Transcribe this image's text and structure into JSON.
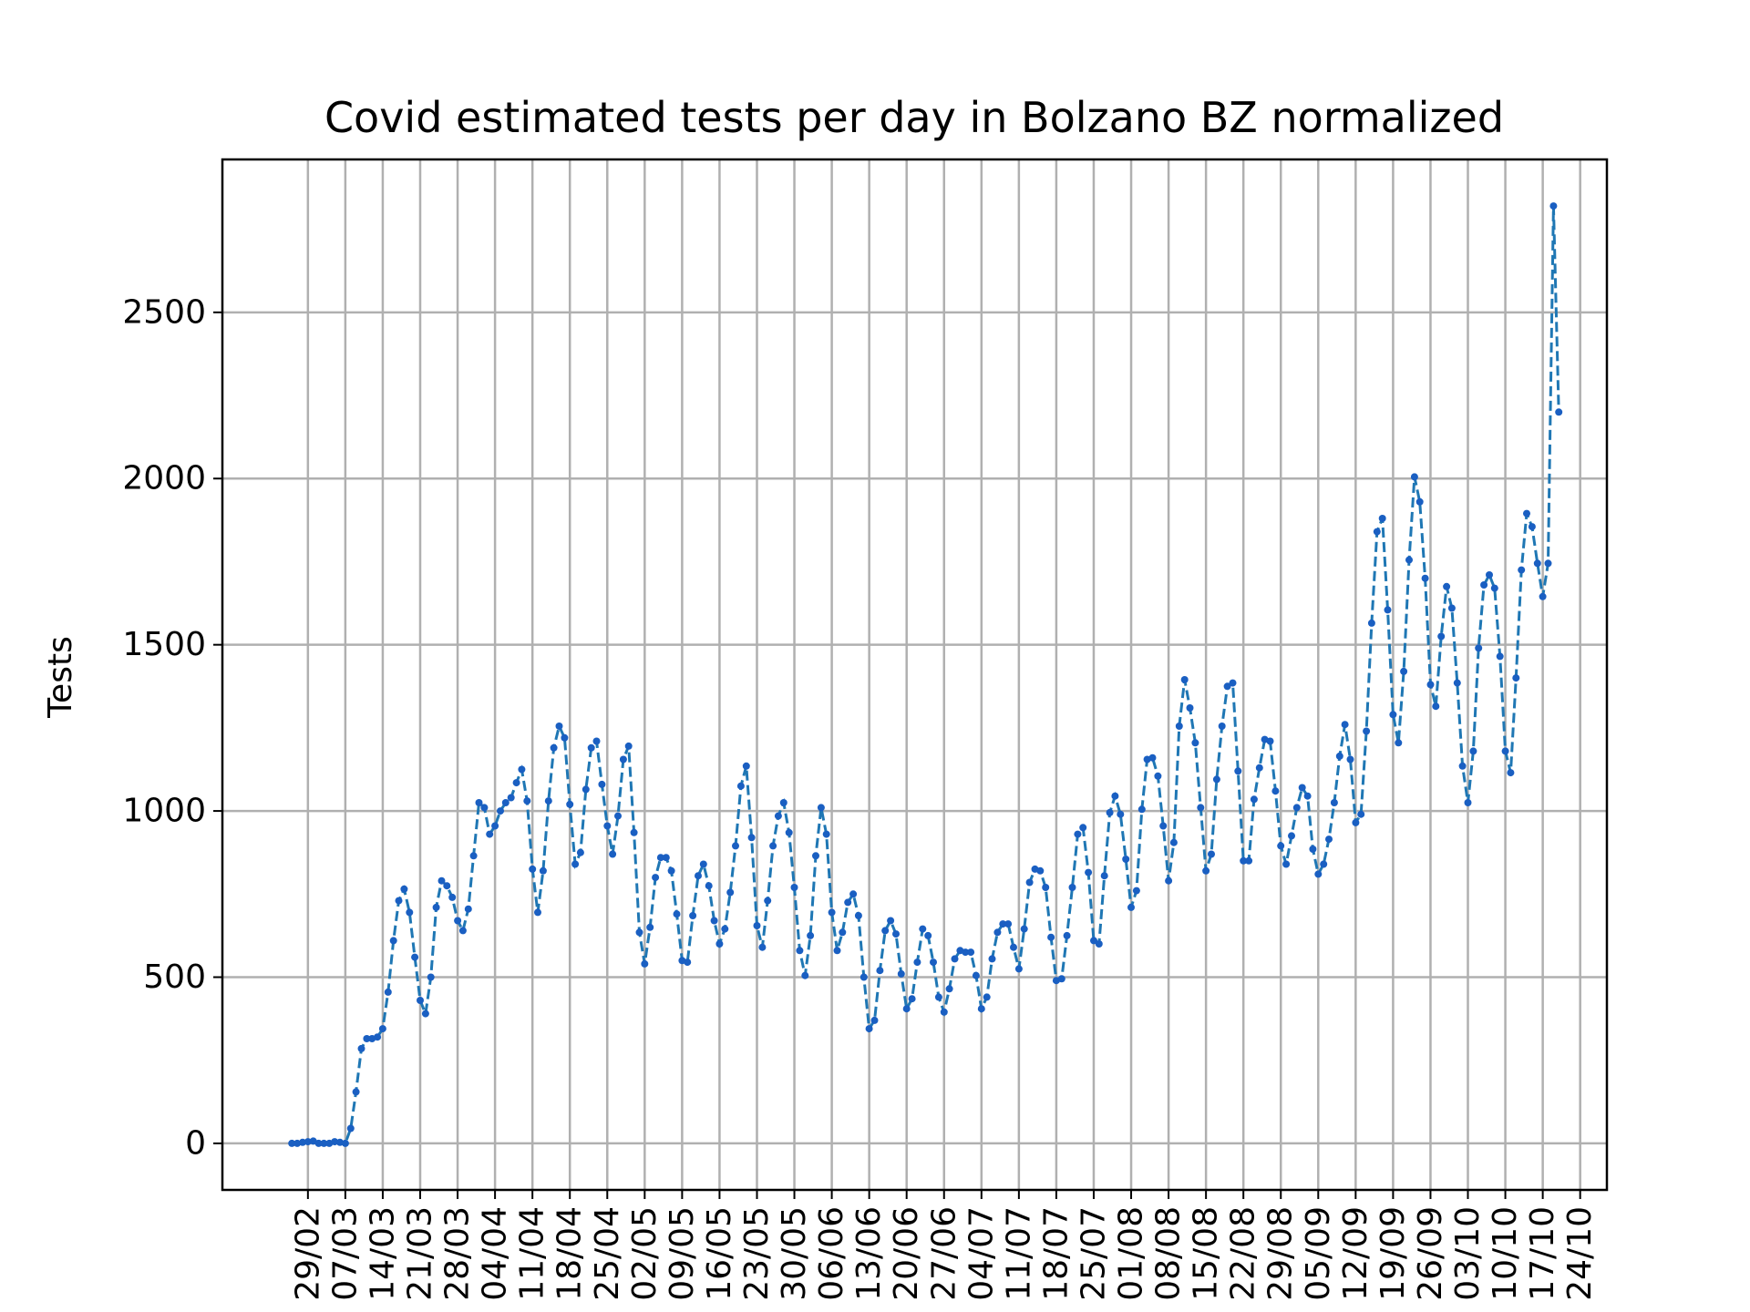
{
  "chart_data": {
    "type": "line",
    "title": "Covid estimated tests per day in Bolzano BZ normalized",
    "xlabel": "",
    "ylabel": "Tests",
    "x_ticks": [
      "29/02",
      "07/03",
      "14/03",
      "21/03",
      "28/03",
      "04/04",
      "11/04",
      "18/04",
      "25/04",
      "02/05",
      "09/05",
      "16/05",
      "23/05",
      "30/05",
      "06/06",
      "13/06",
      "20/06",
      "27/06",
      "04/07",
      "11/07",
      "18/07",
      "25/07",
      "01/08",
      "08/08",
      "15/08",
      "22/08",
      "29/08",
      "05/09",
      "12/09",
      "19/09",
      "26/09",
      "03/10",
      "10/10",
      "17/10",
      "24/10"
    ],
    "y_ticks": [
      0,
      500,
      1000,
      1500,
      2000,
      2500
    ],
    "xlim": [
      "2020-02-13",
      "2020-10-29"
    ],
    "ylim": [
      -140,
      2960
    ],
    "grid": true,
    "series": [
      {
        "color": "#1f77b4",
        "marker_color": "#1a5fc2",
        "linestyle": "dashed",
        "x_start": "2020-02-26",
        "values": [
          0,
          0,
          3,
          5,
          7,
          0,
          0,
          0,
          5,
          3,
          0,
          45,
          155,
          285,
          315,
          315,
          320,
          345,
          455,
          610,
          730,
          765,
          695,
          560,
          430,
          390,
          500,
          710,
          790,
          775,
          740,
          670,
          640,
          705,
          865,
          1025,
          1010,
          930,
          955,
          1000,
          1025,
          1040,
          1085,
          1125,
          1030,
          825,
          695,
          820,
          1030,
          1190,
          1255,
          1220,
          1020,
          840,
          875,
          1065,
          1190,
          1210,
          1080,
          955,
          870,
          985,
          1155,
          1195,
          935,
          635,
          540,
          650,
          800,
          860,
          860,
          820,
          690,
          550,
          545,
          685,
          805,
          840,
          775,
          670,
          600,
          645,
          755,
          895,
          1075,
          1135,
          920,
          655,
          590,
          730,
          895,
          985,
          1025,
          935,
          770,
          580,
          505,
          625,
          865,
          1010,
          930,
          695,
          580,
          635,
          725,
          750,
          685,
          500,
          345,
          370,
          520,
          640,
          670,
          630,
          510,
          405,
          435,
          545,
          645,
          625,
          545,
          440,
          395,
          465,
          555,
          580,
          575,
          575,
          505,
          405,
          440,
          555,
          635,
          660,
          660,
          590,
          525,
          645,
          785,
          825,
          820,
          770,
          620,
          490,
          495,
          625,
          770,
          930,
          950,
          815,
          610,
          600,
          805,
          995,
          1045,
          990,
          855,
          710,
          760,
          1005,
          1155,
          1160,
          1105,
          955,
          790,
          905,
          1255,
          1395,
          1310,
          1205,
          1010,
          820,
          870,
          1095,
          1255,
          1375,
          1385,
          1120,
          850,
          850,
          1035,
          1130,
          1215,
          1210,
          1060,
          895,
          840,
          925,
          1010,
          1070,
          1045,
          885,
          810,
          840,
          915,
          1025,
          1165,
          1260,
          1155,
          965,
          990,
          1240,
          1565,
          1840,
          1880,
          1605,
          1290,
          1205,
          1420,
          1755,
          2005,
          1930,
          1700,
          1380,
          1315,
          1525,
          1675,
          1610,
          1385,
          1135,
          1025,
          1180,
          1490,
          1680,
          1710,
          1670,
          1465,
          1180,
          1115,
          1400,
          1725,
          1895,
          1855,
          1745,
          1645,
          1745,
          2820,
          2200
        ]
      }
    ]
  }
}
